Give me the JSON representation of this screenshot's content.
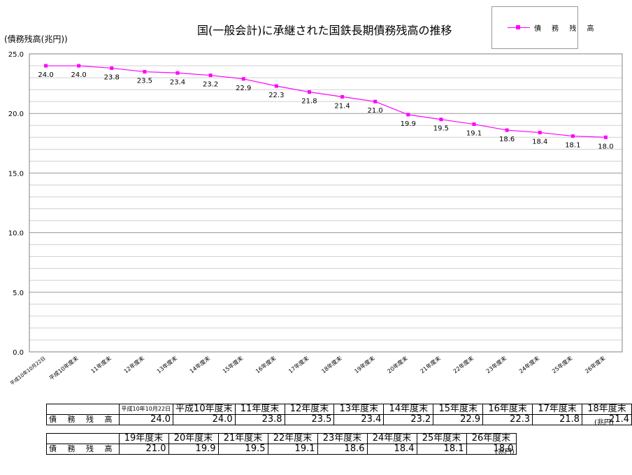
{
  "title": "国(一般会計)に承継された国鉄長期債務残高の推移",
  "y_unit_label": "(債務残高(兆円))",
  "legend": {
    "label": "債 務 残 高",
    "color": "#ff00ff"
  },
  "chart_data": {
    "type": "line",
    "categories": [
      "平成10年10月22日",
      "平成10年度末",
      "11年度末",
      "12年度末",
      "13年度末",
      "14年度末",
      "15年度末",
      "16年度末",
      "17年度末",
      "18年度末",
      "19年度末",
      "20年度末",
      "21年度末",
      "22年度末",
      "23年度末",
      "24年度末",
      "25年度末",
      "26年度末"
    ],
    "series": [
      {
        "name": "債 務 残 高",
        "values": [
          24.0,
          24.0,
          23.8,
          23.5,
          23.4,
          23.2,
          22.9,
          22.3,
          21.8,
          21.4,
          21.0,
          19.9,
          19.5,
          19.1,
          18.6,
          18.4,
          18.1,
          18.0
        ]
      }
    ],
    "y_ticks": [
      "0.0",
      "5.0",
      "10.0",
      "15.0",
      "20.0",
      "25.0"
    ],
    "ylim": [
      0,
      25
    ],
    "grid": true,
    "legend_position": "top-right",
    "line_color": "#ff00ff"
  },
  "table1": {
    "row_label": "債 務 残 高",
    "headers": [
      "平成10年10月22日",
      "平成10年度末",
      "11年度末",
      "12年度末",
      "13年度末",
      "14年度末",
      "15年度末",
      "16年度末",
      "17年度末",
      "18年度末"
    ],
    "values": [
      "24.0",
      "24.0",
      "23.8",
      "23.5",
      "23.4",
      "23.2",
      "22.9",
      "22.3",
      "21.8",
      "21.4"
    ],
    "unit": "(兆円)"
  },
  "table2": {
    "row_label": "債 務 残 高",
    "headers": [
      "19年度末",
      "20年度末",
      "21年度末",
      "22年度末",
      "23年度末",
      "24年度末",
      "25年度末",
      "26年度末"
    ],
    "values": [
      "21.0",
      "19.9",
      "19.5",
      "19.1",
      "18.6",
      "18.4",
      "18.1",
      "18.0"
    ],
    "unit": "(兆円)"
  }
}
